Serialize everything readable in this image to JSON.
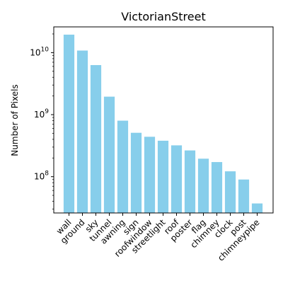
{
  "chart_data": {
    "type": "bar",
    "title": "VictorianStreet",
    "xlabel": "",
    "ylabel": "Number of Pixels",
    "yscale": "log",
    "ylim": [
      26000000,
      26000000000
    ],
    "grid": false,
    "color": "#87ceeb",
    "y_ticks": [
      {
        "value": 100000000,
        "base": "10",
        "exp": "8"
      },
      {
        "value": 1000000000,
        "base": "10",
        "exp": "9"
      },
      {
        "value": 10000000000,
        "base": "10",
        "exp": "10"
      }
    ],
    "categories": [
      "wall",
      "ground",
      "sky",
      "tunnel",
      "awning",
      "sign",
      "roofwindow",
      "streetlight",
      "roof",
      "poster",
      "flag",
      "chimney",
      "clock",
      "post",
      "chimneypipe"
    ],
    "values": [
      19500000000,
      10800000000,
      6300000000,
      1950000000,
      800000000,
      510000000,
      440000000,
      380000000,
      320000000,
      265000000,
      195000000,
      172000000,
      122000000,
      90000000,
      37000000
    ]
  }
}
